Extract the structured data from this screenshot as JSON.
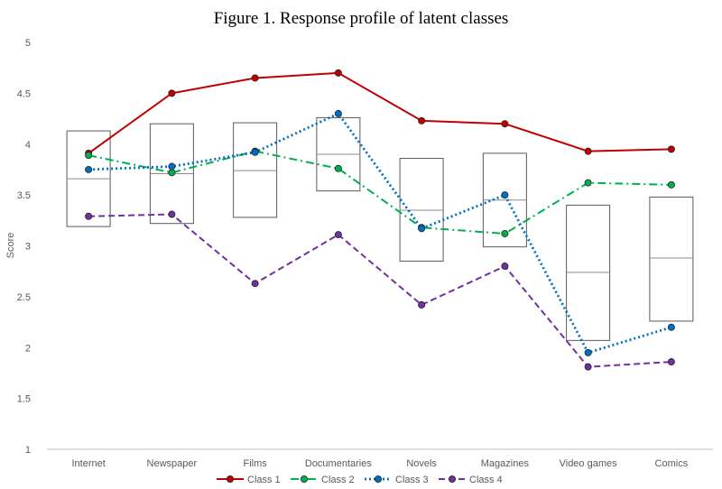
{
  "chart_data": {
    "type": "line",
    "title": "Figure 1. Response profile of latent classes",
    "xlabel": "",
    "ylabel": "Score",
    "ylim": [
      1,
      5
    ],
    "yticks": [
      1,
      1.5,
      2,
      2.5,
      3,
      3.5,
      4,
      4.5,
      5
    ],
    "ytick_labels": [
      "1",
      "1.5",
      "2",
      "2.5",
      "3",
      "3.5",
      "4",
      "4.5",
      "5"
    ],
    "categories": [
      "Internet",
      "Newspaper",
      "Films",
      "Documentaries",
      "Novels",
      "Magazines",
      "Video games",
      "Comics"
    ],
    "series": [
      {
        "name": "Class 1",
        "color": "#C00000",
        "dash": "solid",
        "values": [
          3.91,
          4.5,
          4.65,
          4.7,
          4.23,
          4.2,
          3.93,
          3.95
        ]
      },
      {
        "name": "Class 2",
        "color": "#00B050",
        "dash": "dashdot",
        "values": [
          3.89,
          3.72,
          3.93,
          3.76,
          3.18,
          3.12,
          3.62,
          3.6
        ]
      },
      {
        "name": "Class 3",
        "color": "#0070C0",
        "dash": "dotted",
        "values": [
          3.75,
          3.78,
          3.92,
          4.3,
          3.17,
          3.5,
          1.95,
          2.2
        ]
      },
      {
        "name": "Class 4",
        "color": "#7030A0",
        "dash": "dashed",
        "values": [
          3.29,
          3.31,
          2.63,
          3.11,
          2.42,
          2.8,
          1.81,
          1.86
        ]
      }
    ],
    "boxes": [
      {
        "category": "Internet",
        "low": 3.19,
        "mid": 3.66,
        "high": 4.13
      },
      {
        "category": "Newspaper",
        "low": 3.22,
        "mid": 3.71,
        "high": 4.2
      },
      {
        "category": "Films",
        "low": 3.28,
        "mid": 3.74,
        "high": 4.21
      },
      {
        "category": "Documentaries",
        "low": 3.54,
        "mid": 3.9,
        "high": 4.26
      },
      {
        "category": "Novels",
        "low": 2.85,
        "mid": 3.35,
        "high": 3.86
      },
      {
        "category": "Magazines",
        "low": 2.99,
        "mid": 3.45,
        "high": 3.91
      },
      {
        "category": "Video games",
        "low": 2.07,
        "mid": 2.74,
        "high": 3.4
      },
      {
        "category": "Comics",
        "low": 2.26,
        "mid": 2.88,
        "high": 3.48
      }
    ],
    "grid": false,
    "legend": "bottom"
  }
}
